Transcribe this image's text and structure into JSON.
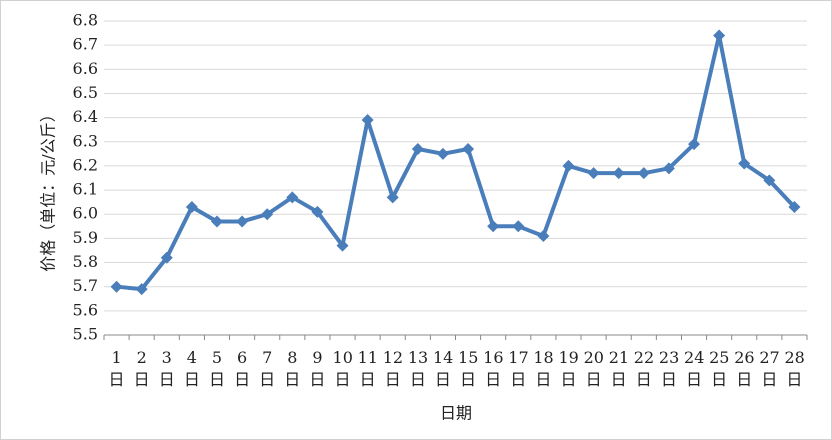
{
  "chart_data": {
    "type": "line",
    "x_label": "日期",
    "y_label": "价格（单位：元/公斤）",
    "categories": [
      "1日",
      "2日",
      "3日",
      "4日",
      "5日",
      "6日",
      "7日",
      "8日",
      "9日",
      "10日",
      "11日",
      "12日",
      "13日",
      "14日",
      "15日",
      "16日",
      "17日",
      "18日",
      "19日",
      "20日",
      "21日",
      "22日",
      "23日",
      "24日",
      "25日",
      "26日",
      "27日",
      "28日"
    ],
    "series": [
      {
        "color": "#4a7ebb",
        "values": [
          5.7,
          5.69,
          5.82,
          6.03,
          5.97,
          5.97,
          6.0,
          6.07,
          6.01,
          5.87,
          6.39,
          6.07,
          6.27,
          6.25,
          6.27,
          5.95,
          5.95,
          5.91,
          6.2,
          6.17,
          6.17,
          6.17,
          6.19,
          6.29,
          6.74,
          6.21,
          6.14,
          6.03
        ]
      }
    ],
    "ylim": [
      5.5,
      6.8
    ],
    "yticks": [
      5.5,
      5.6,
      5.7,
      5.8,
      5.9,
      {
        "value": 6,
        "label": "6.0"
      },
      6.1,
      6.2,
      6.3,
      6.4,
      6.5,
      6.6,
      6.7,
      6.8
    ],
    "grid": true
  }
}
